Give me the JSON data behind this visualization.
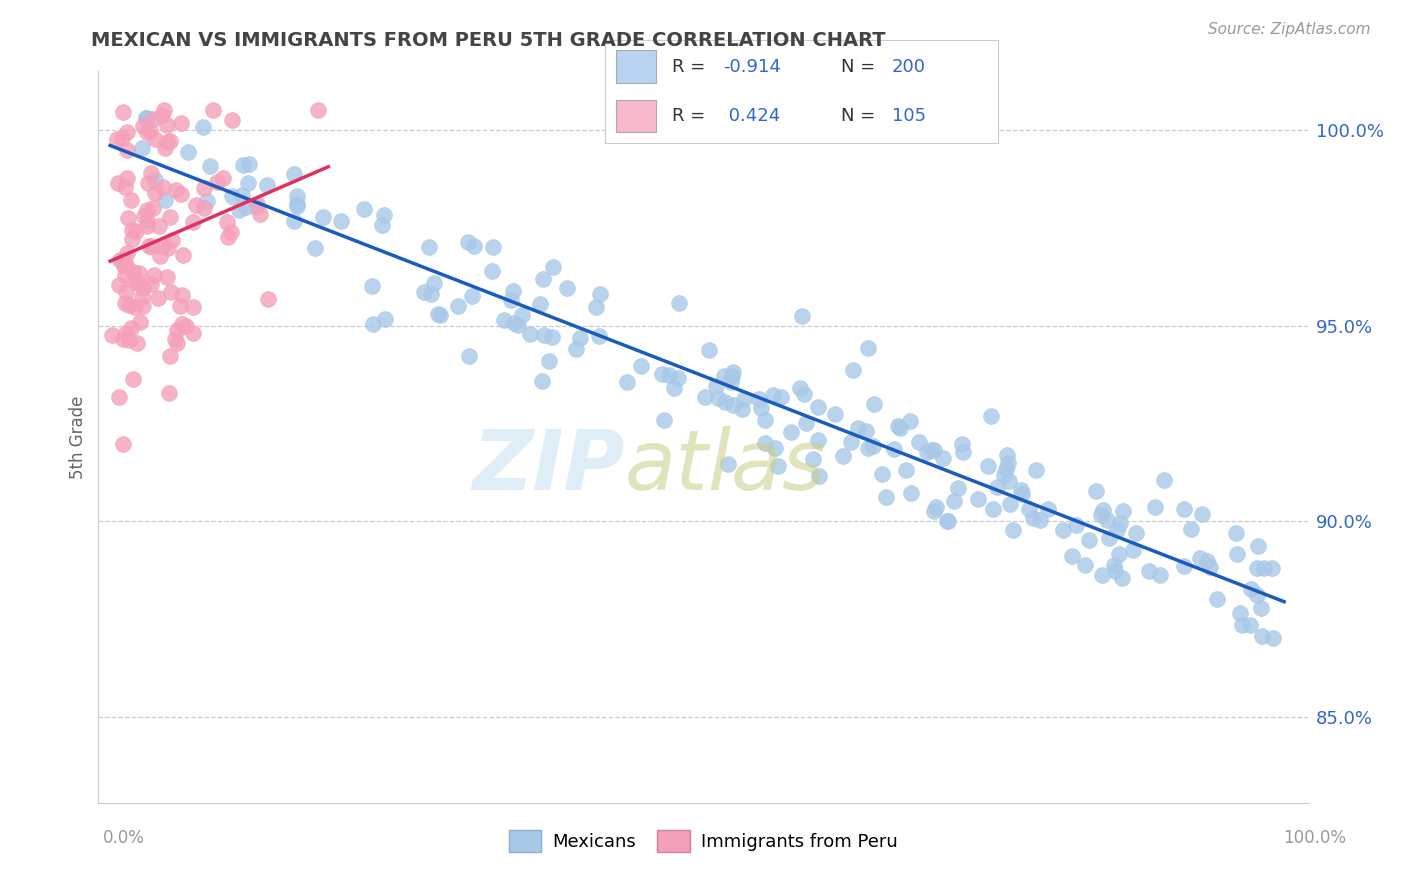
{
  "title": "MEXICAN VS IMMIGRANTS FROM PERU 5TH GRADE CORRELATION CHART",
  "source_text": "Source: ZipAtlas.com",
  "ylabel": "5th Grade",
  "y_ticks": [
    0.85,
    0.9,
    0.95,
    1.0
  ],
  "y_tick_labels": [
    "85.0%",
    "90.0%",
    "95.0%",
    "100.0%"
  ],
  "blue_color": "#a8c8e8",
  "pink_color": "#f4a0b8",
  "blue_line_color": "#1a5bbf",
  "pink_line_color": "#e03060",
  "blue_legend_color": "#b8d4f0",
  "pink_legend_color": "#f8b8cc",
  "legend_text_color": "#3366cc",
  "title_color": "#444444",
  "background_color": "#ffffff",
  "grid_color": "#cccccc",
  "source_color": "#999999",
  "ylabel_color": "#666666",
  "ytick_color": "#3366cc",
  "xtick_color": "#999999"
}
